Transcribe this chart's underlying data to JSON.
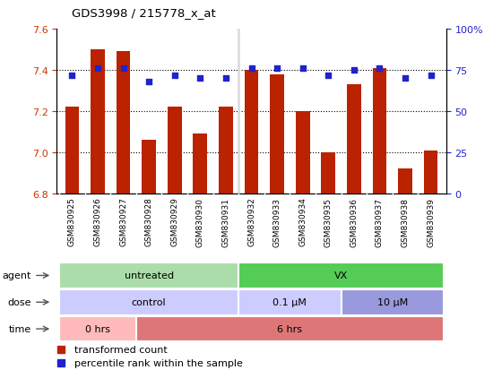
{
  "title": "GDS3998 / 215778_x_at",
  "samples": [
    "GSM830925",
    "GSM830926",
    "GSM830927",
    "GSM830928",
    "GSM830929",
    "GSM830930",
    "GSM830931",
    "GSM830932",
    "GSM830933",
    "GSM830934",
    "GSM830935",
    "GSM830936",
    "GSM830937",
    "GSM830938",
    "GSM830939"
  ],
  "transformed_counts": [
    7.22,
    7.5,
    7.49,
    7.06,
    7.22,
    7.09,
    7.22,
    7.4,
    7.38,
    7.2,
    7.0,
    7.33,
    7.41,
    6.92,
    7.01
  ],
  "percentile_ranks": [
    72,
    76,
    76,
    68,
    72,
    70,
    70,
    76,
    76,
    76,
    72,
    75,
    76,
    70,
    72
  ],
  "ylim_left": [
    6.8,
    7.6
  ],
  "ylim_right": [
    0,
    100
  ],
  "yticks_left": [
    6.8,
    7.0,
    7.2,
    7.4,
    7.6
  ],
  "yticks_right": [
    0,
    25,
    50,
    75,
    100
  ],
  "bar_color": "#bb2200",
  "dot_color": "#2222cc",
  "bar_bottom": 6.8,
  "agent_labels": [
    {
      "text": "untreated",
      "start": 0,
      "end": 6,
      "color": "#aaddaa"
    },
    {
      "text": "VX",
      "start": 7,
      "end": 14,
      "color": "#55cc55"
    }
  ],
  "dose_labels": [
    {
      "text": "control",
      "start": 0,
      "end": 6,
      "color": "#ccccff"
    },
    {
      "text": "0.1 μM",
      "start": 7,
      "end": 10,
      "color": "#ccccff"
    },
    {
      "text": "10 μM",
      "start": 11,
      "end": 14,
      "color": "#9999dd"
    }
  ],
  "time_labels": [
    {
      "text": "0 hrs",
      "start": 0,
      "end": 2,
      "color": "#ffbbbb"
    },
    {
      "text": "6 hrs",
      "start": 3,
      "end": 14,
      "color": "#dd7777"
    }
  ],
  "legend_items": [
    {
      "color": "#bb2200",
      "label": "transformed count"
    },
    {
      "color": "#2222cc",
      "label": "percentile rank within the sample"
    }
  ],
  "background_color": "#ffffff",
  "plot_bg_color": "#ffffff",
  "xtick_bg_color": "#dddddd",
  "grid_color": "#000000",
  "left_tick_color": "#cc3300",
  "right_tick_color": "#2222cc"
}
